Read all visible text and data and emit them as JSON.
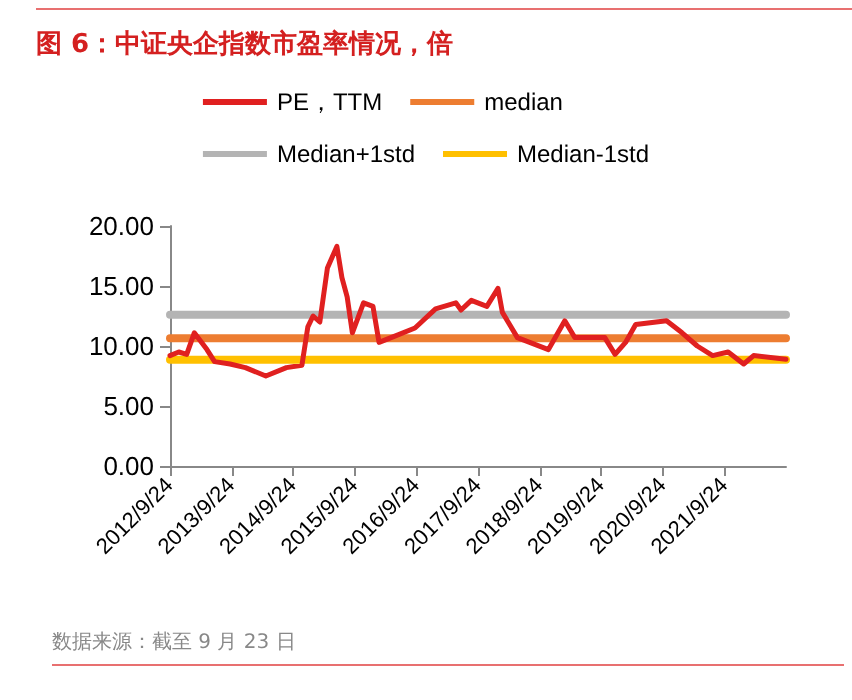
{
  "chart_data": {
    "type": "line",
    "title": "图 6：中证央企指数市盈率情况，倍",
    "annotations": [
      "数据来源：截至 9 月 23 日"
    ],
    "xlim": [
      "2012-09-24",
      "2022-09-23"
    ],
    "xticks": [
      {
        "value": "2012-09-24",
        "label": "2012/9/24"
      },
      {
        "value": "2013-09-24",
        "label": "2013/9/24"
      },
      {
        "value": "2014-09-24",
        "label": "2014/9/24"
      },
      {
        "value": "2015-09-24",
        "label": "2015/9/24"
      },
      {
        "value": "2016-09-24",
        "label": "2016/9/24"
      },
      {
        "value": "2017-09-24",
        "label": "2017/9/24"
      },
      {
        "value": "2018-09-24",
        "label": "2018/9/24"
      },
      {
        "value": "2019-09-24",
        "label": "2019/9/24"
      },
      {
        "value": "2020-09-24",
        "label": "2020/9/24"
      },
      {
        "value": "2021-09-24",
        "label": "2021/9/24"
      }
    ],
    "ylim": [
      0,
      20
    ],
    "yticks": [
      {
        "value": 0,
        "label": "0.00"
      },
      {
        "value": 5,
        "label": "5.00"
      },
      {
        "value": 10,
        "label": "10.00"
      },
      {
        "value": 15,
        "label": "15.00"
      },
      {
        "value": 20,
        "label": "20.00"
      }
    ],
    "series": [
      {
        "name": "PE，TTM",
        "color": "#e02020",
        "x": [
          "2012-09-24",
          "2012-11-15",
          "2013-01-01",
          "2013-02-15",
          "2013-05-01",
          "2013-06-15",
          "2013-09-15",
          "2013-12-15",
          "2014-04-15",
          "2014-08-15",
          "2014-11-15",
          "2014-12-20",
          "2015-01-20",
          "2015-03-01",
          "2015-04-15",
          "2015-06-10",
          "2015-07-10",
          "2015-08-10",
          "2015-09-10",
          "2015-11-15",
          "2016-01-10",
          "2016-02-15",
          "2016-05-15",
          "2016-09-15",
          "2017-01-15",
          "2017-05-15",
          "2017-06-15",
          "2017-08-15",
          "2017-11-15",
          "2018-01-20",
          "2018-02-15",
          "2018-05-15",
          "2018-11-15",
          "2019-02-20",
          "2019-04-20",
          "2019-10-15",
          "2019-12-15",
          "2020-02-15",
          "2020-04-15",
          "2020-08-15",
          "2020-10-15",
          "2021-01-15",
          "2021-04-15",
          "2021-07-15",
          "2021-10-15",
          "2022-01-15",
          "2022-03-15",
          "2022-09-23"
        ],
        "values": [
          9.2,
          9.5,
          9.3,
          11.1,
          9.7,
          8.7,
          8.5,
          8.2,
          7.5,
          8.2,
          8.4,
          11.6,
          12.5,
          12.0,
          16.5,
          18.3,
          15.7,
          14.1,
          11.1,
          13.6,
          13.3,
          10.3,
          10.8,
          11.5,
          13.1,
          13.6,
          13.0,
          13.8,
          13.3,
          14.8,
          12.8,
          10.7,
          9.7,
          12.1,
          10.7,
          10.7,
          9.3,
          10.3,
          11.8,
          12.0,
          12.1,
          11.1,
          10.0,
          9.2,
          9.5,
          8.5,
          9.2,
          8.9
        ]
      },
      {
        "name": "median",
        "color": "#ed7d31",
        "x": [
          "2012-09-24",
          "2022-09-23"
        ],
        "values": [
          10.65,
          10.65
        ]
      },
      {
        "name": "Median+1std",
        "color": "#b4b4b4",
        "x": [
          "2012-09-24",
          "2022-09-23"
        ],
        "values": [
          12.6,
          12.6
        ]
      },
      {
        "name": "Median-1std",
        "color": "#ffc000",
        "x": [
          "2012-09-24",
          "2022-09-23"
        ],
        "values": [
          8.85,
          8.85
        ]
      }
    ],
    "legend": "top",
    "grid": false,
    "marker": "none",
    "line_style": "solid"
  }
}
